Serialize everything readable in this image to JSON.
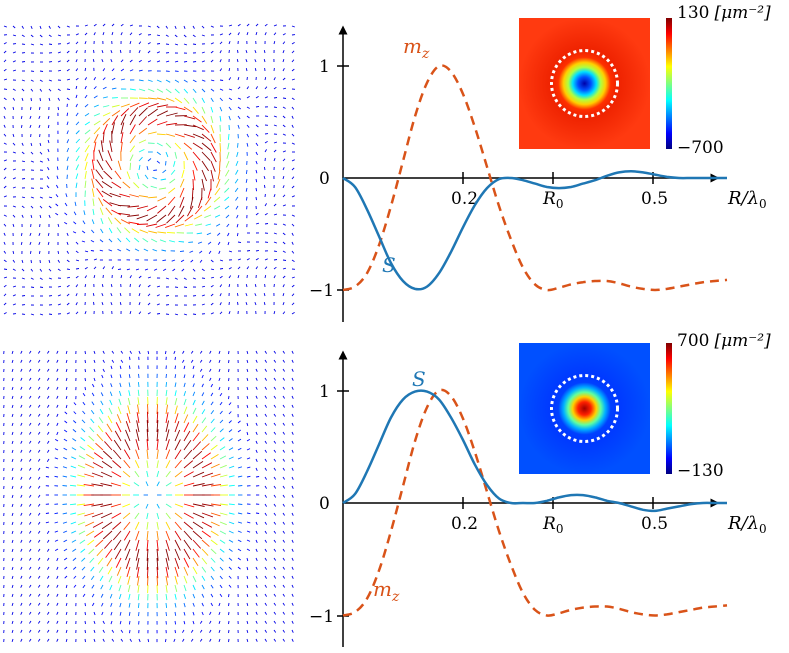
{
  "colors": {
    "S": "#1f77b4",
    "m_z": "#d95319",
    "arrow_low": "#1a12c8",
    "arrow_high": "#d80000"
  },
  "panels": [
    {
      "id": "top",
      "quiver": {
        "pattern": "swirl-vortex",
        "colormap": "jet"
      },
      "inset": {
        "colormap": "jet",
        "colorbar_max": "130",
        "colorbar_min": "−700",
        "colorbar_unit": "[μm⁻²]",
        "center": "low"
      },
      "labels": {
        "S": "S",
        "m_z": "m",
        "m_z_sub": "z"
      }
    },
    {
      "id": "bottom",
      "quiver": {
        "pattern": "radial-hedgehog",
        "colormap": "jet"
      },
      "inset": {
        "colormap": "jet",
        "colorbar_max": "700",
        "colorbar_min": "−130",
        "colorbar_unit": "[μm⁻²]",
        "center": "high"
      },
      "labels": {
        "S": "S",
        "m_z": "m",
        "m_z_sub": "z"
      }
    }
  ],
  "axis": {
    "xlabel": "R/λ",
    "xlabel_sub": "0",
    "xtick_02": "0.2",
    "xtick_R0": "R",
    "xtick_R0_sub": "0",
    "xtick_05": "0.5",
    "ytick_1": "1",
    "ytick_0": "0",
    "ytick_m1": "−1"
  },
  "chart_data": [
    {
      "type": "line",
      "xlabel": "R/λ0",
      "xticks": [
        "0.2",
        "R0",
        "0.5"
      ],
      "yticks": [
        "−1",
        "0",
        "1"
      ],
      "xlim": [
        0,
        0.65
      ],
      "ylim": [
        -1.1,
        1.1
      ],
      "R0": 0.36,
      "series": [
        {
          "name": "S",
          "style": "solid",
          "x": [
            0,
            0.02,
            0.04,
            0.06,
            0.08,
            0.1,
            0.12,
            0.14,
            0.16,
            0.18,
            0.2,
            0.22,
            0.24,
            0.26,
            0.28,
            0.3,
            0.32,
            0.34,
            0.36,
            0.38,
            0.4,
            0.42,
            0.44,
            0.46,
            0.48,
            0.5,
            0.52,
            0.54,
            0.56,
            0.58,
            0.6,
            0.62,
            0.64
          ],
          "y": [
            0,
            -0.08,
            -0.28,
            -0.52,
            -0.76,
            -0.92,
            -0.99,
            -0.97,
            -0.85,
            -0.66,
            -0.44,
            -0.24,
            -0.09,
            -0.01,
            0.0,
            -0.02,
            -0.05,
            -0.08,
            -0.09,
            -0.08,
            -0.05,
            -0.02,
            0.02,
            0.05,
            0.06,
            0.05,
            0.03,
            0.01,
            0.0,
            0.0,
            0.0,
            0.0,
            0.0
          ]
        },
        {
          "name": "m_z",
          "style": "dashed",
          "x": [
            0,
            0.02,
            0.04,
            0.06,
            0.08,
            0.1,
            0.12,
            0.14,
            0.16,
            0.18,
            0.2,
            0.22,
            0.24,
            0.26,
            0.28,
            0.3,
            0.32,
            0.34,
            0.36,
            0.38,
            0.4,
            0.42,
            0.44,
            0.46,
            0.48,
            0.5,
            0.52,
            0.54,
            0.56,
            0.58,
            0.6,
            0.62,
            0.64
          ],
          "y": [
            -1.0,
            -0.97,
            -0.85,
            -0.6,
            -0.25,
            0.15,
            0.55,
            0.85,
            1.0,
            0.95,
            0.75,
            0.45,
            0.1,
            -0.25,
            -0.55,
            -0.8,
            -0.95,
            -1.0,
            -0.98,
            -0.95,
            -0.93,
            -0.92,
            -0.92,
            -0.94,
            -0.97,
            -0.99,
            -1.0,
            -0.99,
            -0.97,
            -0.95,
            -0.93,
            -0.92,
            -0.91
          ]
        }
      ]
    },
    {
      "type": "line",
      "xlabel": "R/λ0",
      "xticks": [
        "0.2",
        "R0",
        "0.5"
      ],
      "yticks": [
        "−1",
        "0",
        "1"
      ],
      "xlim": [
        0,
        0.65
      ],
      "ylim": [
        -1.1,
        1.1
      ],
      "R0": 0.36,
      "series": [
        {
          "name": "S",
          "style": "solid",
          "x": [
            0,
            0.02,
            0.04,
            0.06,
            0.08,
            0.1,
            0.12,
            0.14,
            0.16,
            0.18,
            0.2,
            0.22,
            0.24,
            0.26,
            0.28,
            0.3,
            0.32,
            0.34,
            0.36,
            0.38,
            0.4,
            0.42,
            0.44,
            0.46,
            0.48,
            0.5,
            0.52,
            0.54,
            0.56,
            0.58,
            0.6,
            0.62,
            0.64
          ],
          "y": [
            0,
            0.08,
            0.28,
            0.52,
            0.76,
            0.92,
            0.99,
            0.99,
            0.92,
            0.76,
            0.56,
            0.34,
            0.16,
            0.04,
            0.0,
            0.0,
            0.0,
            0.02,
            0.05,
            0.07,
            0.07,
            0.05,
            0.02,
            0.0,
            -0.03,
            -0.06,
            -0.07,
            -0.05,
            -0.03,
            -0.01,
            0.0,
            0.0,
            0.0
          ]
        },
        {
          "name": "m_z",
          "style": "dashed",
          "x": [
            0,
            0.02,
            0.04,
            0.06,
            0.08,
            0.1,
            0.12,
            0.14,
            0.16,
            0.18,
            0.2,
            0.22,
            0.24,
            0.26,
            0.28,
            0.3,
            0.32,
            0.34,
            0.36,
            0.38,
            0.4,
            0.42,
            0.44,
            0.46,
            0.48,
            0.5,
            0.52,
            0.54,
            0.56,
            0.58,
            0.6,
            0.62,
            0.64
          ],
          "y": [
            -1.0,
            -0.97,
            -0.85,
            -0.6,
            -0.25,
            0.15,
            0.55,
            0.85,
            1.0,
            0.95,
            0.75,
            0.45,
            0.1,
            -0.25,
            -0.55,
            -0.8,
            -0.95,
            -1.0,
            -0.98,
            -0.95,
            -0.93,
            -0.92,
            -0.92,
            -0.94,
            -0.97,
            -0.99,
            -1.0,
            -0.99,
            -0.97,
            -0.95,
            -0.93,
            -0.92,
            -0.91
          ]
        }
      ]
    }
  ]
}
